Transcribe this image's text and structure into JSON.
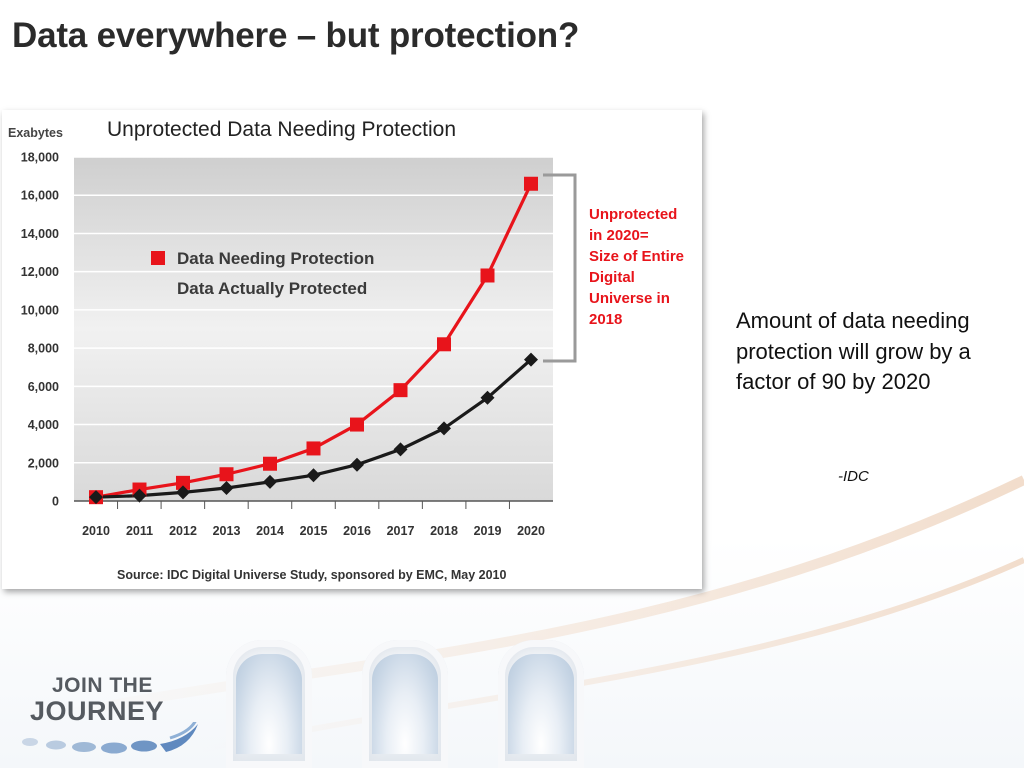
{
  "slide": {
    "title": "Data everywhere – but protection?",
    "side_text": "Amount of data needing protection will grow by a factor of 90 by 2020",
    "side_credit": "-IDC",
    "logo": {
      "line1": "JOIN THE",
      "line2": "JOURNEY"
    }
  },
  "chart_data": {
    "type": "line",
    "title": "Unprotected Data Needing Protection",
    "ylabel": "Exabytes",
    "xlabel": "",
    "x": [
      "2010",
      "2011",
      "2012",
      "2013",
      "2014",
      "2015",
      "2016",
      "2017",
      "2018",
      "2019",
      "2020"
    ],
    "ylim": [
      0,
      18000
    ],
    "yticks": [
      0,
      2000,
      4000,
      6000,
      8000,
      10000,
      12000,
      14000,
      16000,
      18000
    ],
    "ytick_labels": [
      "0",
      "2,000",
      "4,000",
      "6,000",
      "8,000",
      "10,000",
      "12,000",
      "14,000",
      "16,000",
      "18,000"
    ],
    "grid": true,
    "legend_position": "upper-left",
    "series": [
      {
        "name": "Data Needing Protection",
        "color": "#e8141b",
        "marker": "square",
        "values": [
          200,
          600,
          950,
          1400,
          1950,
          2750,
          4000,
          5800,
          8200,
          11800,
          16600
        ]
      },
      {
        "name": "Data Actually Protected",
        "color": "#1a1a1a",
        "marker": "diamond",
        "values": [
          200,
          280,
          450,
          680,
          1000,
          1350,
          1900,
          2700,
          3800,
          5400,
          7400
        ]
      }
    ],
    "annotation": "Unprotected in 2020= Size of Entire Digital Universe in 2018",
    "annotation_color": "#e8141b",
    "source": "Source:  IDC Digital Universe Study, sponsored by EMC, May 2010"
  }
}
